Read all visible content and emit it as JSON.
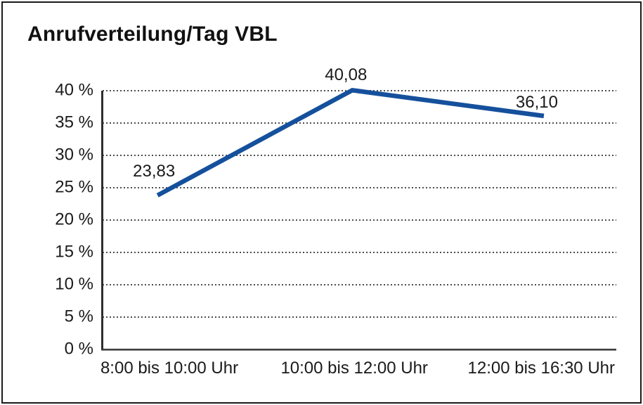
{
  "chart_data": {
    "type": "line",
    "title": "Anrufverteilung/Tag VBL",
    "categories": [
      "8:00 bis 10:00 Uhr",
      "10:00 bis 12:00 Uhr",
      "12:00 bis 16:30 Uhr"
    ],
    "values": [
      23.83,
      40.08,
      36.1
    ],
    "value_labels": [
      "23,83",
      "40,08",
      "36,10"
    ],
    "series": [
      {
        "name": "Anrufverteilung",
        "values": [
          23.83,
          40.08,
          36.1
        ]
      }
    ],
    "xlabel": "",
    "ylabel": "",
    "ylim": [
      0,
      40
    ],
    "ytick_step": 5,
    "ytick_labels": [
      "0 %",
      "5 %",
      "10 %",
      "15 %",
      "20 %",
      "25 %",
      "30 %",
      "35 %",
      "40 %"
    ],
    "grid": "horizontal-dotted",
    "legend_position": "none",
    "line_color": "#15509c",
    "text_color": "#1a1a1a",
    "grid_color": "#4d4d4d",
    "border_color": "#1a1a1a"
  }
}
